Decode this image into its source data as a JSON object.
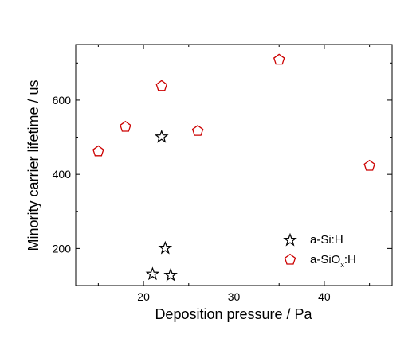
{
  "chart_data": {
    "type": "scatter",
    "xlabel": "Deposition pressure / Pa",
    "ylabel": "Minority carrier lifetime / us",
    "xlim": [
      12.5,
      47.5
    ],
    "ylim": [
      100,
      750
    ],
    "xticks": [
      20,
      30,
      40
    ],
    "yticks": [
      200,
      400,
      600
    ],
    "grid": false,
    "legend_position": "bottom-right",
    "series": [
      {
        "name": "a-Si:H",
        "marker": "star",
        "color": "#000000",
        "points": [
          {
            "x": 22.0,
            "y": 503
          },
          {
            "x": 22.4,
            "y": 203
          },
          {
            "x": 21.0,
            "y": 133
          },
          {
            "x": 23.0,
            "y": 130
          }
        ]
      },
      {
        "name": "a-SiOx:H",
        "legend_parts": {
          "base": "a-SiO",
          "sub": "x",
          "tail": ":H"
        },
        "marker": "pentagon",
        "color": "#cc0000",
        "points": [
          {
            "x": 15.0,
            "y": 463
          },
          {
            "x": 18.0,
            "y": 529
          },
          {
            "x": 22.0,
            "y": 639
          },
          {
            "x": 26.0,
            "y": 518
          },
          {
            "x": 35.0,
            "y": 710
          },
          {
            "x": 45.0,
            "y": 424
          }
        ]
      }
    ]
  }
}
